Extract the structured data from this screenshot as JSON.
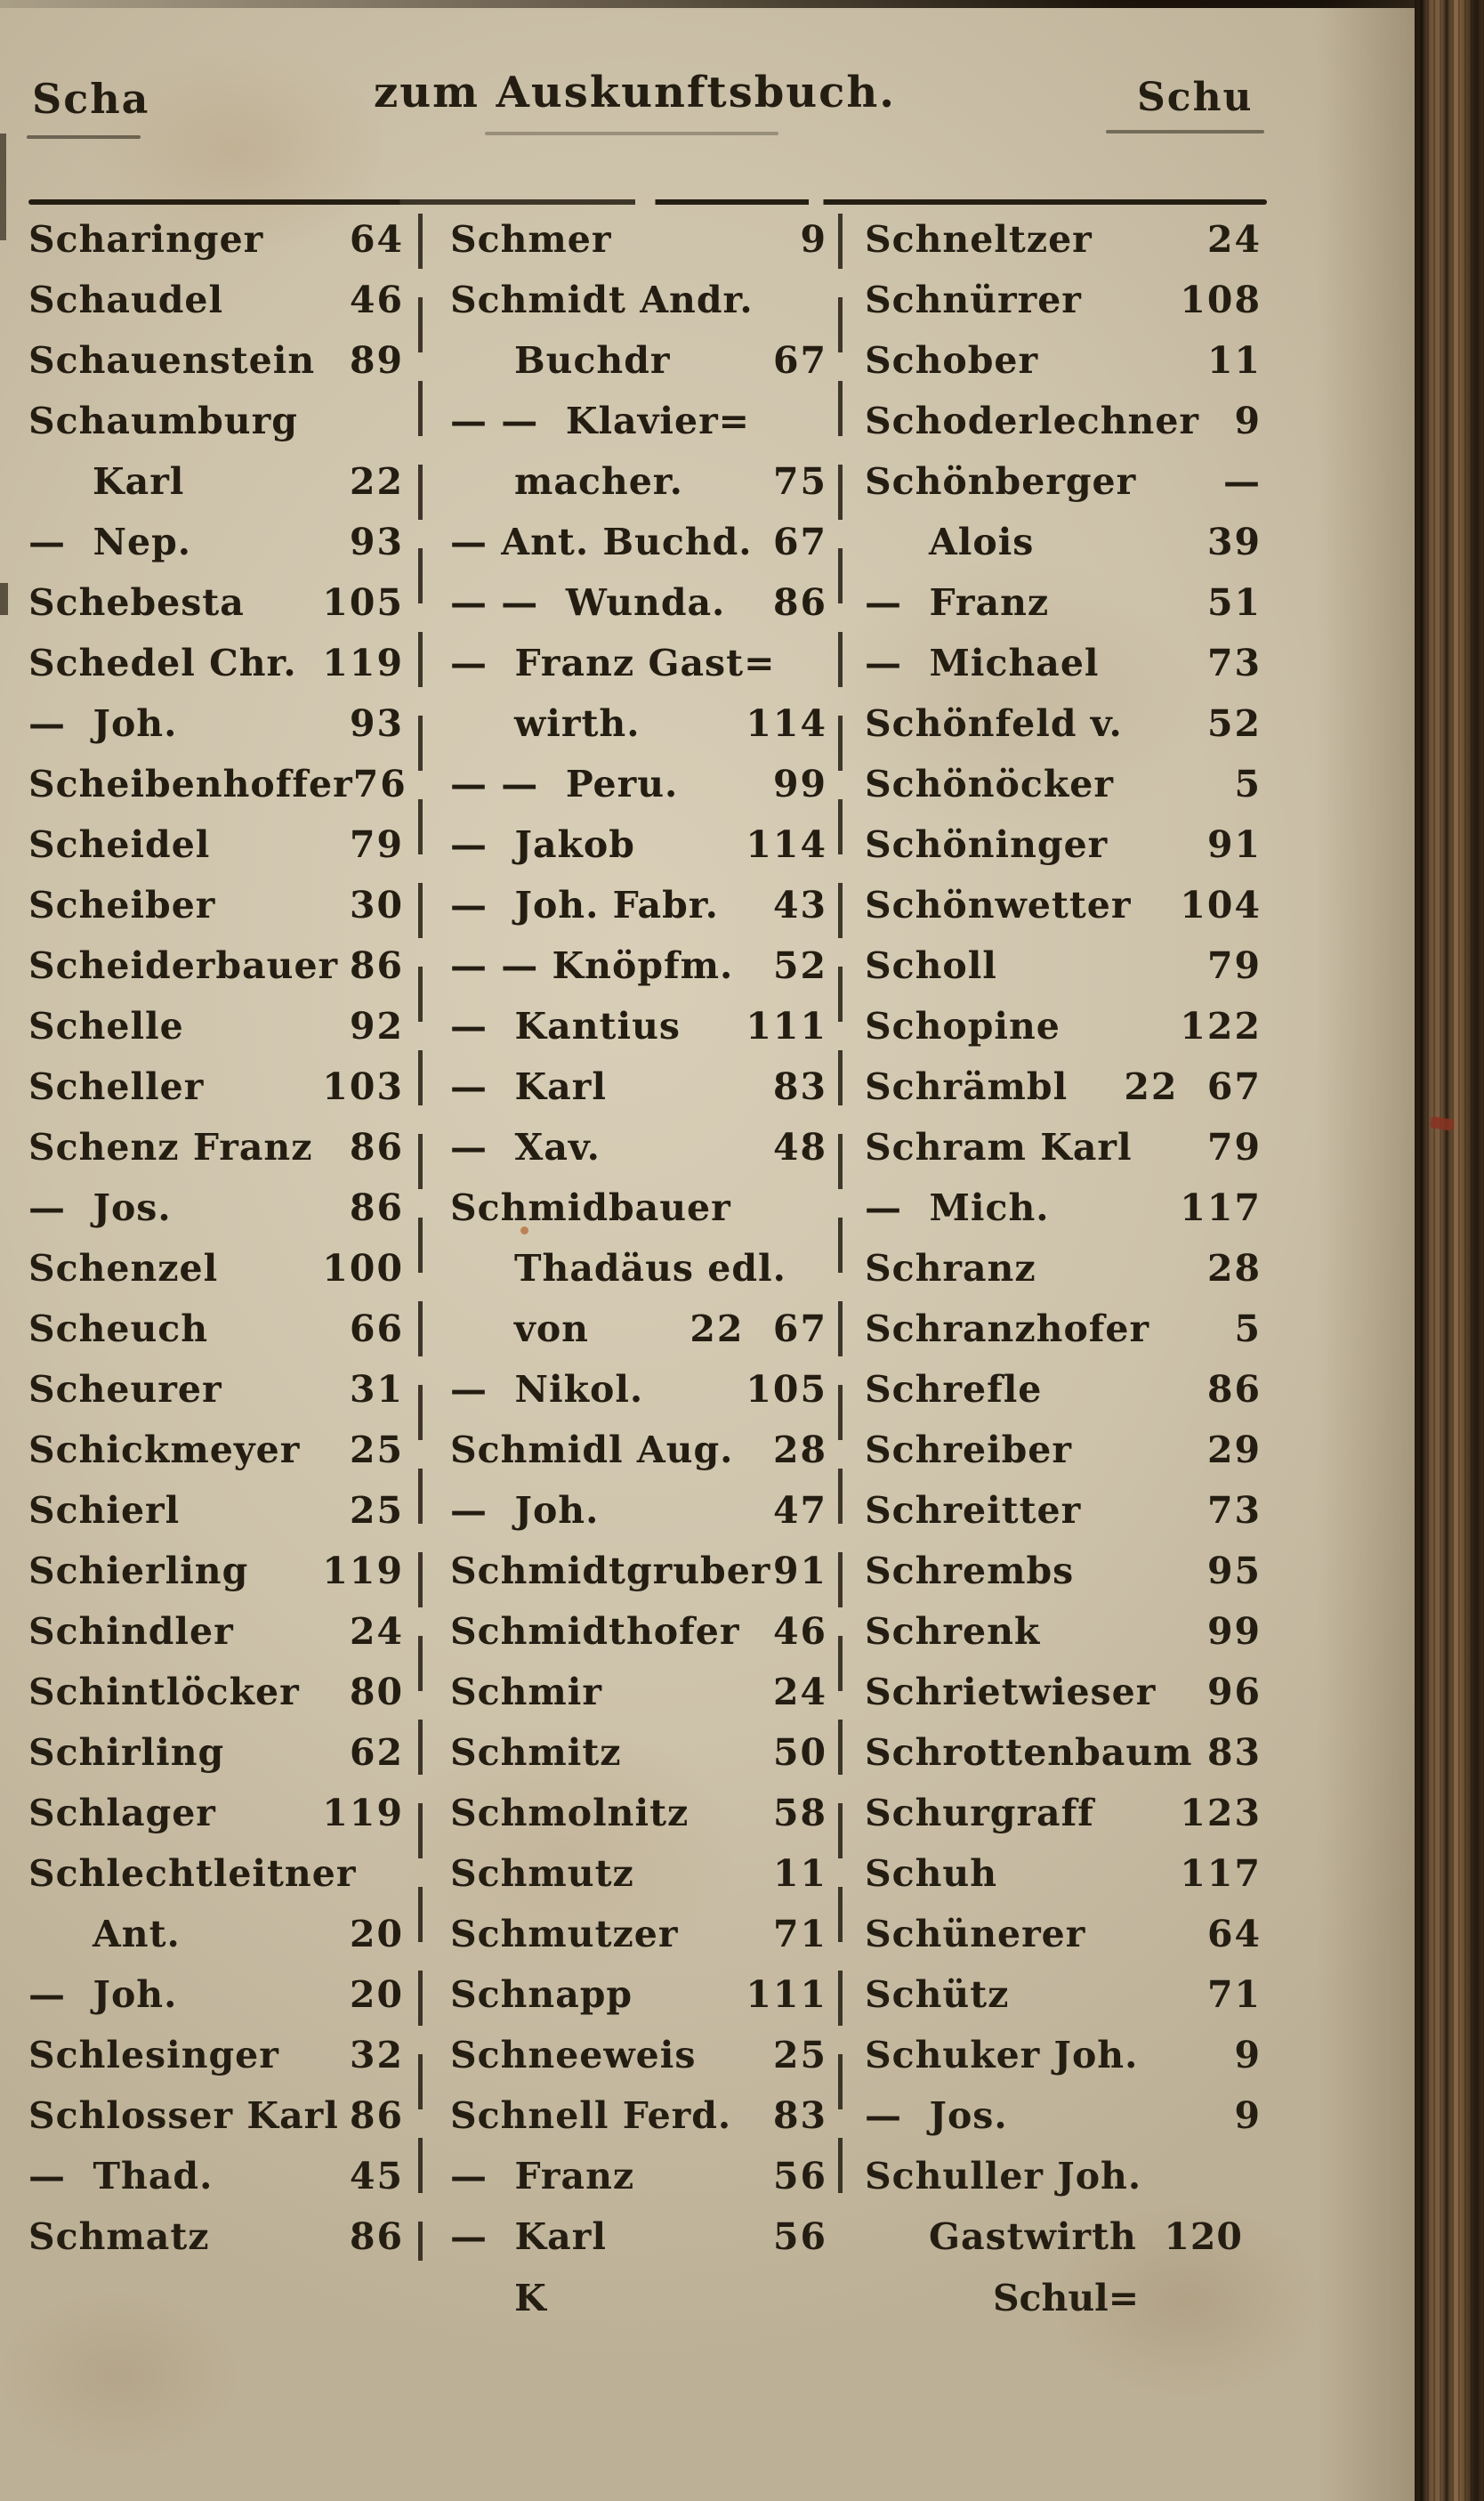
{
  "page": {
    "header": {
      "left": "Scha",
      "center": "zum Auskunftsbuch.",
      "right": "Schu"
    },
    "columns": [
      {
        "entries": [
          {
            "name": "Scharinger",
            "num": "64"
          },
          {
            "name": "Schaudel",
            "num": "46"
          },
          {
            "name": "Schauenstein",
            "num": "89"
          },
          {
            "name": "Schaumburg",
            "num": ""
          },
          {
            "name": "Karl",
            "num": "22",
            "indent": true
          },
          {
            "name": "—  Nep.",
            "num": "93"
          },
          {
            "name": "Schebesta",
            "num": "105"
          },
          {
            "name": "Schedel Chr.",
            "num": "119"
          },
          {
            "name": "—  Joh.",
            "num": "93"
          },
          {
            "name": "Scheibenhoffer",
            "num": "76"
          },
          {
            "name": "Scheidel",
            "num": "79"
          },
          {
            "name": "Scheiber",
            "num": "30"
          },
          {
            "name": "Scheiderbauer",
            "num": "86"
          },
          {
            "name": "Schelle",
            "num": "92"
          },
          {
            "name": "Scheller",
            "num": "103"
          },
          {
            "name": "Schenz Franz",
            "num": "86"
          },
          {
            "name": "—  Jos.",
            "num": "86"
          },
          {
            "name": "Schenzel",
            "num": "100"
          },
          {
            "name": "Scheuch",
            "num": "66"
          },
          {
            "name": "Scheurer",
            "num": "31"
          },
          {
            "name": "Schickmeyer",
            "num": "25"
          },
          {
            "name": "Schierl",
            "num": "25"
          },
          {
            "name": "Schierling",
            "num": "119"
          },
          {
            "name": "Schindler",
            "num": "24"
          },
          {
            "name": "Schintlöcker",
            "num": "80"
          },
          {
            "name": "Schirling",
            "num": "62"
          },
          {
            "name": "Schlager",
            "num": "119"
          },
          {
            "name": "Schlechtleitner",
            "num": ""
          },
          {
            "name": "Ant.",
            "num": "20",
            "indent": true
          },
          {
            "name": "—  Joh.",
            "num": "20"
          },
          {
            "name": "Schlesinger",
            "num": "32"
          },
          {
            "name": "Schlosser Karl",
            "num": "86"
          },
          {
            "name": "—  Thad.",
            "num": "45"
          },
          {
            "name": "Schmatz",
            "num": "86"
          }
        ],
        "catchword": ""
      },
      {
        "entries": [
          {
            "name": "Schmer",
            "num": "9"
          },
          {
            "name": "Schmidt Andr.",
            "num": ""
          },
          {
            "name": "Buchdr",
            "num": "67",
            "indent": true
          },
          {
            "name": "— —  Klavier=",
            "num": ""
          },
          {
            "name": "macher.",
            "num": "75",
            "indent": true
          },
          {
            "name": "— Ant. Buchd.",
            "num": "67"
          },
          {
            "name": "— —  Wunda.",
            "num": "86"
          },
          {
            "name": "—  Franz Gast=",
            "num": ""
          },
          {
            "name": "wirth.",
            "num": "114",
            "indent": true
          },
          {
            "name": "— —  Peru.",
            "num": "99"
          },
          {
            "name": "—  Jakob",
            "num": "114"
          },
          {
            "name": "—  Joh. Fabr.",
            "num": "43"
          },
          {
            "name": "— — Knöpfm.",
            "num": "52"
          },
          {
            "name": "—  Kantius",
            "num": "111"
          },
          {
            "name": "—  Karl",
            "num": "83"
          },
          {
            "name": "—  Xav.",
            "num": "48"
          },
          {
            "name": "Schmidbauer",
            "num": ""
          },
          {
            "name": "Thadäus edl.",
            "num": "",
            "indent": true
          },
          {
            "name": "von",
            "num": "22  67",
            "indent": true
          },
          {
            "name": "—  Nikol.",
            "num": "105"
          },
          {
            "name": "Schmidl Aug.",
            "num": "28"
          },
          {
            "name": "—  Joh.",
            "num": "47"
          },
          {
            "name": "Schmidtgruber",
            "num": "91"
          },
          {
            "name": "Schmidthofer",
            "num": "46"
          },
          {
            "name": "Schmir",
            "num": "24"
          },
          {
            "name": "Schmitz",
            "num": "50"
          },
          {
            "name": "Schmolnitz",
            "num": "58"
          },
          {
            "name": "Schmutz",
            "num": "11"
          },
          {
            "name": "Schmutzer",
            "num": "71"
          },
          {
            "name": "Schnapp",
            "num": "111"
          },
          {
            "name": "Schneeweis",
            "num": "25"
          },
          {
            "name": "Schnell Ferd.",
            "num": "83"
          },
          {
            "name": "—  Franz",
            "num": "56"
          },
          {
            "name": "—  Karl",
            "num": "56"
          }
        ],
        "catchword": "K"
      },
      {
        "entries": [
          {
            "name": "Schneltzer",
            "num": "24"
          },
          {
            "name": "Schnürrer",
            "num": "108"
          },
          {
            "name": "Schober",
            "num": "11"
          },
          {
            "name": "Schoderlechner",
            "num": "9"
          },
          {
            "name": "Schönberger",
            "num": "—"
          },
          {
            "name": "Alois",
            "num": "39",
            "indent": true
          },
          {
            "name": "—  Franz",
            "num": "51"
          },
          {
            "name": "—  Michael",
            "num": "73"
          },
          {
            "name": "Schönfeld v.",
            "num": "52"
          },
          {
            "name": "Schönöcker",
            "num": "5"
          },
          {
            "name": "Schöninger",
            "num": "91"
          },
          {
            "name": "Schönwetter",
            "num": "104"
          },
          {
            "name": "Scholl",
            "num": "79"
          },
          {
            "name": "Schopine",
            "num": "122"
          },
          {
            "name": "Schrämbl",
            "num": "22  67"
          },
          {
            "name": "Schram Karl",
            "num": "79"
          },
          {
            "name": "—  Mich.",
            "num": "117"
          },
          {
            "name": "Schranz",
            "num": "28"
          },
          {
            "name": "Schranzhofer",
            "num": "5"
          },
          {
            "name": "Schrefle",
            "num": "86"
          },
          {
            "name": "Schreiber",
            "num": "29"
          },
          {
            "name": "Schreitter",
            "num": "73"
          },
          {
            "name": "Schrembs",
            "num": "95"
          },
          {
            "name": "Schrenk",
            "num": "99"
          },
          {
            "name": "Schrietwieser",
            "num": "96"
          },
          {
            "name": "Schrottenbaum",
            "num": "83"
          },
          {
            "name": "Schurgraff",
            "num": "123"
          },
          {
            "name": "Schuh",
            "num": "117"
          },
          {
            "name": "Schünerer",
            "num": "64"
          },
          {
            "name": "Schütz",
            "num": "71"
          },
          {
            "name": "Schuker Joh.",
            "num": "9"
          },
          {
            "name": "—  Jos.",
            "num": "9"
          },
          {
            "name": "Schuller Joh.",
            "num": ""
          },
          {
            "name": "Gastwirth  120",
            "num": "",
            "indent": true
          }
        ],
        "catchword": "Schul="
      }
    ]
  },
  "theme": {
    "paper": "#cdc2aa",
    "ink": "#241d12",
    "binding_brown": "#6e5338",
    "binding_dark": "#241a10",
    "stain_red": "#8a3322"
  }
}
